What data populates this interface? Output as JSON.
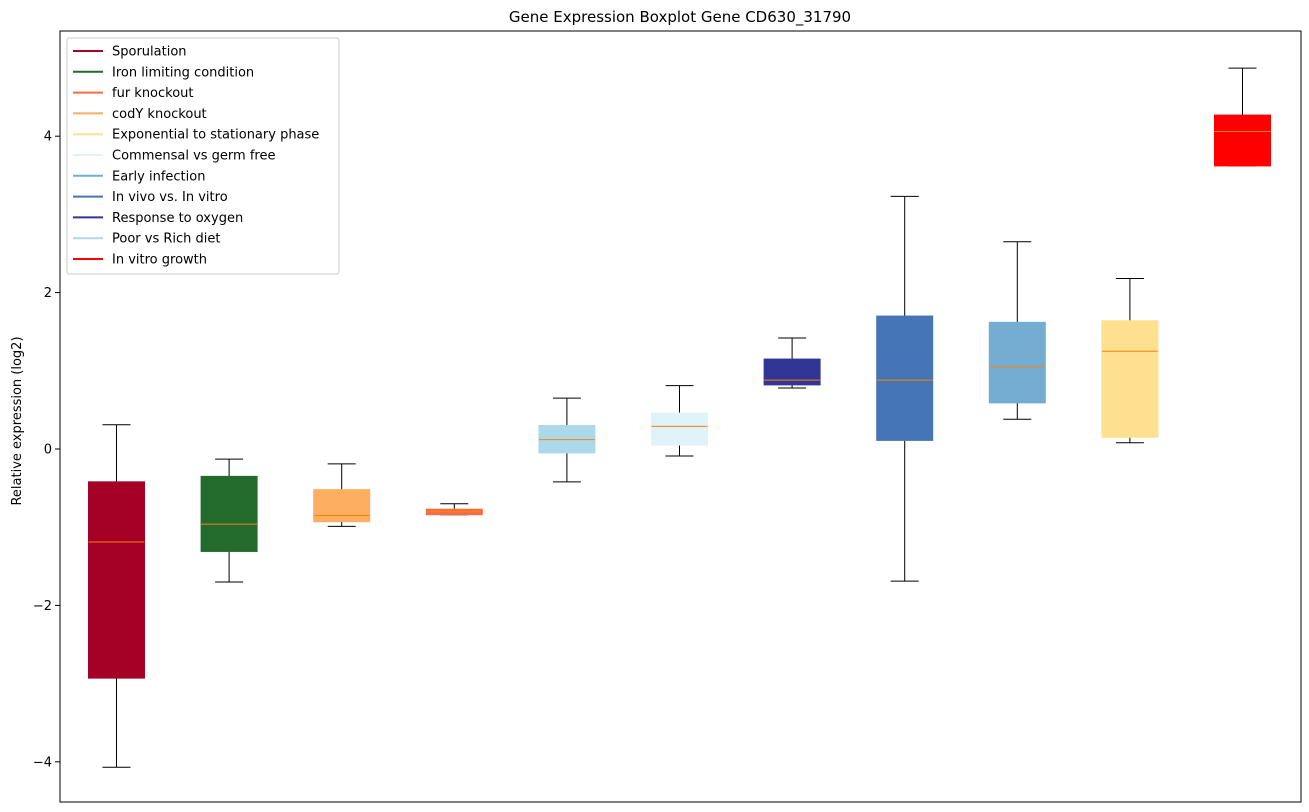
{
  "chart_data": {
    "type": "boxplot",
    "title": "Gene Expression Boxplot Gene CD630_31790",
    "xlabel": "",
    "ylabel": "Relative expression (log2)",
    "ylim": [
      -4.5,
      5.3
    ],
    "yticks": [
      {
        "value": -4,
        "label": "−4"
      },
      {
        "value": -2,
        "label": "−2"
      },
      {
        "value": 0,
        "label": "0"
      },
      {
        "value": 2,
        "label": "2"
      },
      {
        "value": 4,
        "label": "4"
      }
    ],
    "median_color": "#ff7f0e",
    "series": [
      {
        "name": "Sporulation",
        "color": "#a50026",
        "whisker_low": -4.07,
        "q1": -2.93,
        "median": -1.19,
        "q3": -0.42,
        "whisker_high": 0.31
      },
      {
        "name": "Iron limiting condition",
        "color": "#226b2d",
        "whisker_low": -1.7,
        "q1": -1.31,
        "median": -0.96,
        "q3": -0.35,
        "whisker_high": -0.13
      },
      {
        "name": "codY knockout",
        "color": "#fdae61",
        "whisker_low": -0.99,
        "q1": -0.93,
        "median": -0.85,
        "q3": -0.52,
        "whisker_high": -0.19
      },
      {
        "name": "fur knockout",
        "color": "#f46d43",
        "whisker_low": -0.84,
        "q1": -0.84,
        "median": -0.8,
        "q3": -0.77,
        "whisker_high": -0.7
      },
      {
        "name": "Poor vs Rich diet",
        "color": "#abd9e9",
        "whisker_low": -0.42,
        "q1": -0.05,
        "median": 0.12,
        "q3": 0.3,
        "whisker_high": 0.65
      },
      {
        "name": "Commensal vs germ free",
        "color": "#e0f3f8",
        "whisker_low": -0.09,
        "q1": 0.05,
        "median": 0.29,
        "q3": 0.46,
        "whisker_high": 0.81
      },
      {
        "name": "Response to oxygen",
        "color": "#313695",
        "whisker_low": 0.78,
        "q1": 0.82,
        "median": 0.88,
        "q3": 1.15,
        "whisker_high": 1.42
      },
      {
        "name": "In vivo vs. In vitro",
        "color": "#4575b4",
        "whisker_low": -1.69,
        "q1": 0.11,
        "median": 0.88,
        "q3": 1.7,
        "whisker_high": 3.23
      },
      {
        "name": "Early infection",
        "color": "#74add1",
        "whisker_low": 0.38,
        "q1": 0.59,
        "median": 1.05,
        "q3": 1.62,
        "whisker_high": 2.65
      },
      {
        "name": "Exponential to stationary phase",
        "color": "#fee090",
        "whisker_low": 0.08,
        "q1": 0.15,
        "median": 1.25,
        "q3": 1.64,
        "whisker_high": 2.18
      },
      {
        "name": "In vitro growth",
        "color": "#ff0000",
        "whisker_low": 3.62,
        "q1": 3.62,
        "median": 4.06,
        "q3": 4.27,
        "whisker_high": 4.87
      }
    ],
    "legend": {
      "position": "top-left",
      "entries": [
        {
          "label": "Sporulation",
          "color": "#a50026"
        },
        {
          "label": "Iron limiting condition",
          "color": "#226b2d"
        },
        {
          "label": "fur knockout",
          "color": "#f46d43"
        },
        {
          "label": "codY knockout",
          "color": "#fdae61"
        },
        {
          "label": "Exponential to stationary phase",
          "color": "#fee090"
        },
        {
          "label": "Commensal vs germ free",
          "color": "#e0f3f8"
        },
        {
          "label": "Early infection",
          "color": "#74add1"
        },
        {
          "label": "In vivo vs. In vitro",
          "color": "#4575b4"
        },
        {
          "label": "Response to oxygen",
          "color": "#313695"
        },
        {
          "label": "Poor vs Rich diet",
          "color": "#abd9e9"
        },
        {
          "label": "In vitro growth",
          "color": "#ff0000"
        }
      ]
    }
  }
}
